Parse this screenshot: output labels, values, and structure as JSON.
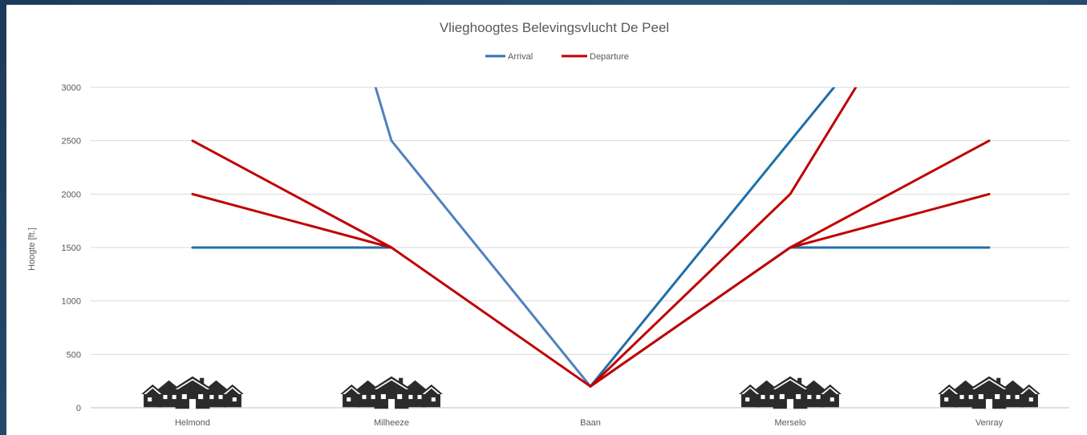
{
  "chart_data": {
    "type": "line",
    "title": "Vlieghoogtes Belevingsvlucht De Peel",
    "ylabel": "Hoogte [ft.]",
    "xlabel": "",
    "categories": [
      "Helmond",
      "Milheeze",
      "Baan",
      "Merselo",
      "Venray"
    ],
    "yticks": [
      0,
      500,
      1000,
      1500,
      2000,
      2500,
      3000
    ],
    "ylim": [
      0,
      3000
    ],
    "grid": true,
    "legend_position": "top",
    "legend": [
      {
        "label": "Arrival",
        "color": "#2e75b6"
      },
      {
        "label": "Departure",
        "color": "#c00000"
      }
    ],
    "series": [
      {
        "group": "Arrival",
        "color": "#4f81bd",
        "points": [
          [
            0.92,
            3000
          ],
          [
            1,
            2500
          ],
          [
            2,
            200
          ]
        ]
      },
      {
        "group": "Arrival",
        "color": "#1f6fa8",
        "points": [
          [
            0,
            1500
          ],
          [
            1,
            1500
          ]
        ]
      },
      {
        "group": "Arrival",
        "color": "#1f6fa8",
        "points": [
          [
            2,
            200
          ],
          [
            3.22,
            3000
          ]
        ]
      },
      {
        "group": "Arrival",
        "color": "#1f6fa8",
        "points": [
          [
            2,
            200
          ],
          [
            3,
            1500
          ],
          [
            4,
            1500
          ]
        ]
      },
      {
        "group": "Departure",
        "color": "#c00000",
        "points": [
          [
            0,
            2500
          ],
          [
            1,
            1500
          ],
          [
            2,
            200
          ]
        ]
      },
      {
        "group": "Departure",
        "color": "#c00000",
        "points": [
          [
            0,
            2000
          ],
          [
            1,
            1500
          ]
        ]
      },
      {
        "group": "Departure",
        "color": "#c00000",
        "points": [
          [
            2,
            200
          ],
          [
            3,
            2000
          ],
          [
            3.33,
            3000
          ]
        ]
      },
      {
        "group": "Departure",
        "color": "#c00000",
        "points": [
          [
            2,
            200
          ],
          [
            3,
            1500
          ],
          [
            4,
            2500
          ]
        ]
      },
      {
        "group": "Departure",
        "color": "#c00000",
        "points": [
          [
            3,
            1500
          ],
          [
            4,
            2000
          ]
        ]
      }
    ],
    "house_icons_at": [
      "Helmond",
      "Milheeze",
      "Merselo",
      "Venray"
    ]
  }
}
